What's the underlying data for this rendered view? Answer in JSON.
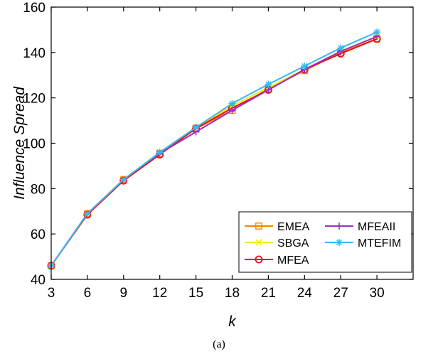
{
  "chart_data": {
    "type": "line",
    "title": "",
    "xlabel": "k",
    "ylabel": "Influence Spread",
    "x": [
      3,
      6,
      9,
      12,
      15,
      18,
      21,
      24,
      27,
      30
    ],
    "xticks": [
      3,
      6,
      9,
      12,
      15,
      18,
      21,
      24,
      27,
      30
    ],
    "xlim": [
      3,
      33
    ],
    "ylim": [
      40,
      160
    ],
    "yticks": [
      40,
      60,
      80,
      100,
      120,
      140,
      160
    ],
    "grid": false,
    "legend_position": "bottom-right",
    "series": [
      {
        "name": "EMEA",
        "color": "#ff8000",
        "marker": "square",
        "values": [
          46,
          69,
          84,
          95.5,
          106.5,
          114.5,
          124,
          132,
          140,
          146
        ]
      },
      {
        "name": "SBGA",
        "color": "#f2ea00",
        "marker": "x",
        "values": [
          46,
          69,
          84,
          96,
          107,
          116.5,
          124.5,
          132.5,
          140.5,
          147
        ]
      },
      {
        "name": "MFEA",
        "color": "#e81010",
        "marker": "circle",
        "values": [
          46,
          68.5,
          83.5,
          95,
          106.5,
          115.5,
          123.5,
          132.5,
          139.5,
          146
        ]
      },
      {
        "name": "MFEAII",
        "color": "#9b30c8",
        "marker": "plus",
        "values": [
          46,
          69,
          84,
          95.5,
          105,
          114.5,
          123.5,
          132.5,
          140.5,
          147
        ]
      },
      {
        "name": "MTEFIM",
        "color": "#33bbee",
        "marker": "asterisk",
        "values": [
          46,
          69,
          84,
          96,
          107,
          117.5,
          126,
          134,
          142,
          149
        ]
      }
    ]
  },
  "caption": "(a)"
}
